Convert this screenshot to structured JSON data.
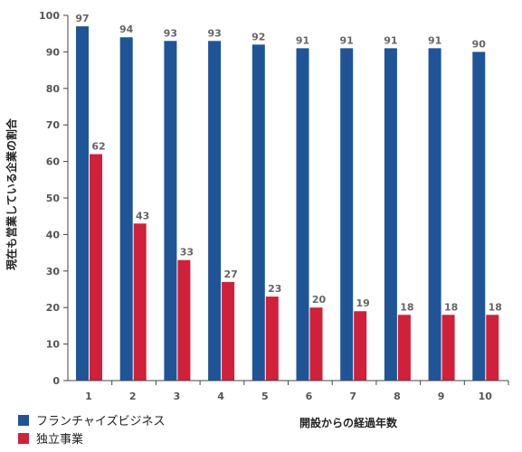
{
  "chart_data": {
    "type": "bar",
    "categories": [
      "1",
      "2",
      "3",
      "4",
      "5",
      "6",
      "7",
      "8",
      "9",
      "10"
    ],
    "series": [
      {
        "name": "フランチャイズビジネス",
        "color": "#1f5597",
        "values": [
          97,
          94,
          93,
          93,
          92,
          91,
          91,
          91,
          91,
          90
        ]
      },
      {
        "name": "独立事業",
        "color": "#d0203a",
        "values": [
          62,
          43,
          33,
          27,
          23,
          20,
          19,
          18,
          18,
          18
        ]
      }
    ],
    "title": "",
    "xlabel": "開設からの経過年数",
    "ylabel": "現在も営業している企業の割合",
    "ylim": [
      0,
      100
    ],
    "yticks": [
      0,
      10,
      20,
      30,
      40,
      50,
      60,
      70,
      80,
      90,
      100
    ],
    "grid": false,
    "legend": "bottom-left"
  }
}
